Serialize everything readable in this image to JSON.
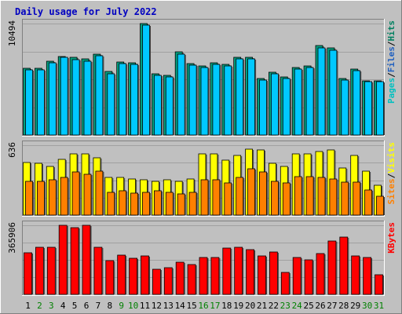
{
  "chart_data": {
    "type": "bar",
    "title": "Daily usage for July 2022",
    "days": [
      "1",
      "2",
      "3",
      "4",
      "5",
      "6",
      "7",
      "8",
      "9",
      "10",
      "11",
      "12",
      "13",
      "14",
      "15",
      "16",
      "17",
      "18",
      "19",
      "20",
      "21",
      "22",
      "23",
      "24",
      "25",
      "26",
      "27",
      "28",
      "29",
      "30",
      "31"
    ],
    "weekend_days": [
      "2",
      "3",
      "9",
      "10",
      "16",
      "17",
      "23",
      "24",
      "30",
      "31"
    ],
    "panels": [
      {
        "id": "hits",
        "max_label": "10494",
        "ymax": 10494,
        "legend": [
          {
            "label": "Pages",
            "color": "#00c0c0"
          },
          {
            "label": "Files",
            "color": "#2060c0"
          },
          {
            "label": "Hits",
            "color": "#008060"
          }
        ],
        "series": [
          {
            "name": "Hits",
            "color": "#00a080",
            "values": [
              6250,
              6300,
              6950,
              7400,
              7350,
              7150,
              7600,
              5950,
              6850,
              6800,
              10494,
              5800,
              5600,
              7800,
              6700,
              6500,
              6800,
              6650,
              7300,
              7300,
              5300,
              5900,
              5500,
              6350,
              6500,
              8400,
              8200,
              5300,
              6200,
              5100,
              5100
            ]
          },
          {
            "name": "Files",
            "color": "#00c8ff",
            "values": [
              6100,
              6150,
              6800,
              7350,
              7100,
              6950,
              7500,
              5800,
              6700,
              6650,
              10350,
              5650,
              5450,
              7600,
              6550,
              6350,
              6650,
              6500,
              7150,
              7150,
              5150,
              5750,
              5350,
              6200,
              6350,
              8200,
              8000,
              5150,
              6050,
              5000,
              5000
            ]
          }
        ]
      },
      {
        "id": "visits",
        "max_label": "636",
        "ymax": 636,
        "legend": [
          {
            "label": "Sites",
            "color": "#ff8000"
          },
          {
            "label": "Visits",
            "color": "#ffff00"
          }
        ],
        "series": [
          {
            "name": "Visits",
            "color": "#ffff00",
            "values": [
              480,
              470,
              440,
              510,
              560,
              560,
              520,
              340,
              340,
              330,
              320,
              310,
              320,
              310,
              330,
              560,
              560,
              500,
              540,
              600,
              590,
              470,
              440,
              560,
              560,
              580,
              590,
              430,
              540,
              400,
              270
            ]
          },
          {
            "name": "Sites",
            "color": "#ff8000",
            "values": [
              310,
              310,
              320,
              340,
              390,
              370,
              400,
              210,
              220,
              200,
              210,
              220,
              210,
              190,
              210,
              320,
              320,
              290,
              340,
              420,
              390,
              310,
              290,
              350,
              350,
              340,
              330,
              300,
              300,
              230,
              170
            ]
          }
        ]
      },
      {
        "id": "kbytes",
        "max_label": "365906",
        "ymax": 365906,
        "legend": [
          {
            "label": "KBytes",
            "color": "#ff0000"
          }
        ],
        "series": [
          {
            "name": "KBytes",
            "color": "#ff0000",
            "values": [
              221000,
              249000,
              249000,
              365906,
              355000,
              365906,
              251000,
              178000,
              209000,
              193000,
              203000,
              134000,
              141000,
              172000,
              158000,
              196000,
              197000,
              245000,
              249000,
              235000,
              203000,
              226000,
              116000,
              197000,
              183000,
              218000,
              282000,
              303000,
              203000,
              194000,
              102000
            ]
          }
        ]
      }
    ]
  }
}
